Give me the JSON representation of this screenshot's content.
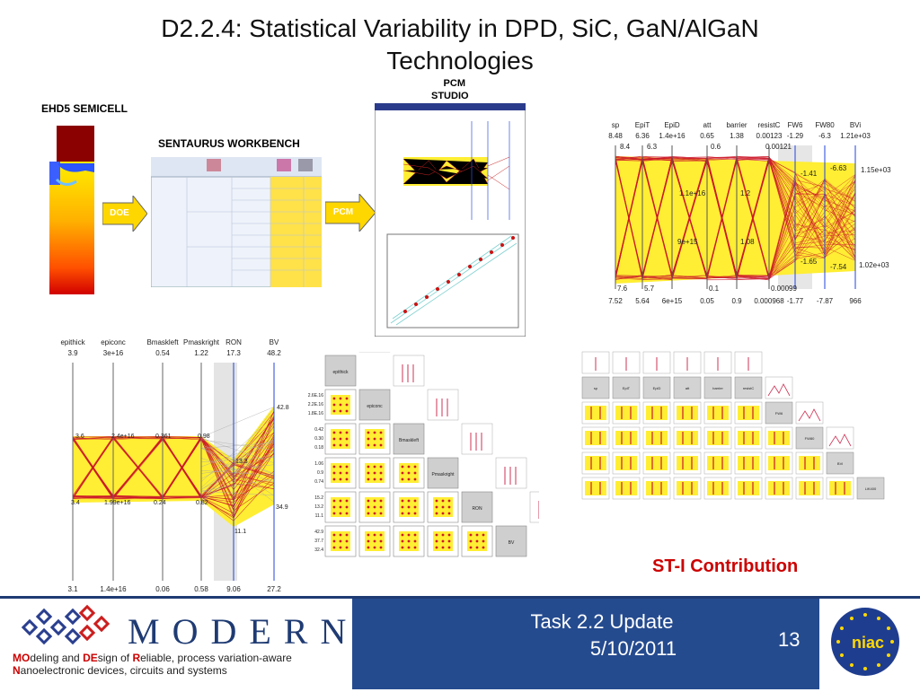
{
  "slide": {
    "title_line1": "D2.2.4: Statistical Variability in DPD, SiC, GaN/AlGaN",
    "title_line2": "Technologies"
  },
  "labels": {
    "ehd5": "EHD5 SEMICELL",
    "sentaurus": "SENTAURUS WORKBENCH",
    "pcm_studio_1": "PCM",
    "pcm_studio_2": "STUDIO",
    "doe_arrow": "DOE",
    "pcm_arrow": "PCM",
    "contribution": "ST-I Contribution"
  },
  "parallel_top": {
    "headers": [
      "sp",
      "EpiT",
      "EpiD",
      "att",
      "barrier",
      "resistC",
      "FW6",
      "FW80",
      "BVi"
    ],
    "top_values": [
      "8.48",
      "6.36",
      "1.4e+16",
      "0.65",
      "1.38",
      "0.00123",
      "-1.29",
      "-6.3",
      "1.21e+03"
    ],
    "bottom_values": [
      "7.52",
      "5.64",
      "6e+15",
      "0.05",
      "0.9",
      "0.000968",
      "-1.77",
      "-7.87",
      "966"
    ],
    "inner_labels": [
      "8.4",
      "6.3",
      "0.6",
      "0.00121",
      "-1.41",
      "-6.63",
      "1.15e+03",
      "1.1e+16",
      "1.2",
      "9e+15",
      "1.08",
      "-1.65",
      "-7.54",
      "1.02e+03",
      "7.6",
      "5.7",
      "0.1",
      "0.00099"
    ]
  },
  "parallel_bottom": {
    "headers": [
      "epithick",
      "epiconc",
      "Bmaskleft",
      "Pmaskright",
      "RON",
      "BV"
    ],
    "top_values": [
      "3.9",
      "3e+16",
      "0.54",
      "1.22",
      "17.3",
      "48.2"
    ],
    "bottom_values": [
      "3.1",
      "1.4e+16",
      "0.06",
      "0.58",
      "9.06",
      "27.2"
    ],
    "inner_labels": [
      "3.6",
      "2.4e+16",
      "0.361",
      "0.98",
      "42.8",
      "13.3",
      "3.4",
      "1.99e+16",
      "0.24",
      "0.82",
      "34.9",
      "11.1"
    ]
  },
  "matrix_left": {
    "diag": [
      "epithick",
      "epiconc",
      "Bmaskleft",
      "Pmaskright",
      "RON",
      "BV"
    ],
    "row_ticks": [
      "2.6E.16",
      "2.2E.16",
      "1.8E.16",
      "0.42",
      "0.30",
      "0.18",
      "1.06",
      "0.9",
      "0.74",
      "15.2",
      "13.2",
      "11.1",
      "42.9",
      "37.7",
      "32.4"
    ]
  },
  "matrix_right": {
    "diag": [
      "sp",
      "EpiT",
      "EpiD",
      "att",
      "barrier",
      "resistC",
      "FW6",
      "FW80",
      "BVi",
      "LiK400"
    ]
  },
  "footer": {
    "brand": "MODERN",
    "tagline_line1_parts": [
      "MO",
      "deling and ",
      "DE",
      "sign of ",
      "R",
      "eliable, process variation-aware"
    ],
    "tagline_line2_parts": [
      "N",
      "anoelectronic devices, circuits and systems"
    ],
    "task_line1": "Task 2.2 Update",
    "task_line2": "5/10/2011",
    "page": "13",
    "niac": "niac"
  },
  "colors": {
    "accent": "#254b8f",
    "yellow": "#ffee33",
    "red": "#cc0000"
  }
}
